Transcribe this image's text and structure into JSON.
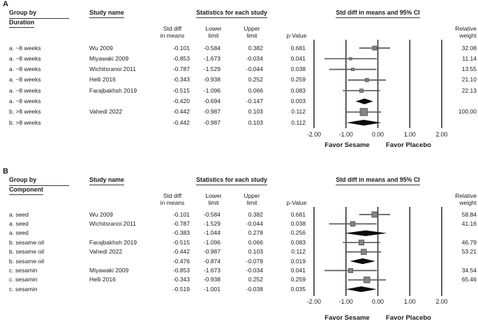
{
  "colors": {
    "text": "#1b1b1b",
    "grid": "#333333",
    "ci_line": "#5c5c5c",
    "marker_fill": "#848484",
    "marker_border": "#4f4f4f",
    "diamond": "#0a0a0a",
    "underline": "#3a3a3a"
  },
  "chart_data": {
    "type": "forest",
    "panels": [
      {
        "label": "A",
        "group_by_label": "Group by",
        "group_by_value": "Duration",
        "study_header": "Study name",
        "stats_header": "Statistics for each study",
        "plot_header": "Std diff in means and 95% CI",
        "columns": {
          "std_diff": {
            "l1": "Std diff",
            "l2": "in means"
          },
          "lower": {
            "l1": "Lower",
            "l2": "limit"
          },
          "upper": {
            "l1": "Upper",
            "l2": "limit"
          },
          "p": "p-Value",
          "weight": {
            "l1": "Relative",
            "l2": "weight"
          }
        },
        "axis": {
          "min": -2,
          "max": 2,
          "ticks": [
            -2,
            -1,
            0,
            1,
            2
          ],
          "tick_labels": [
            "-2.00",
            "-1.00",
            "0.00",
            "1.00",
            "2.00"
          ]
        },
        "favor_left": "Favor Sesame",
        "favor_right": "Favor Placebo",
        "rows": [
          {
            "group": "a. ~8 weeks",
            "study": "Wu 2009",
            "std_diff": -0.101,
            "lower": -0.584,
            "upper": 0.382,
            "p": 0.681,
            "weight": 32.08,
            "kind": "study"
          },
          {
            "group": "a. ~8 weeks",
            "study": "Miyawaki 2009",
            "std_diff": -0.853,
            "lower": -1.673,
            "upper": -0.034,
            "p": 0.041,
            "weight": 11.14,
            "kind": "study"
          },
          {
            "group": "a. ~8 weeks",
            "study": "Wichitsranoi 2011",
            "std_diff": -0.787,
            "lower": -1.529,
            "upper": -0.044,
            "p": 0.038,
            "weight": 13.55,
            "kind": "study"
          },
          {
            "group": "a. ~8 weeks",
            "study": "Helli 2016",
            "std_diff": -0.343,
            "lower": -0.938,
            "upper": 0.252,
            "p": 0.259,
            "weight": 21.1,
            "kind": "study"
          },
          {
            "group": "a. ~8 weeks",
            "study": "Farajbakhsh 2019",
            "std_diff": -0.515,
            "lower": -1.096,
            "upper": 0.066,
            "p": 0.083,
            "weight": 22.13,
            "kind": "study"
          },
          {
            "group": "a. ~8 weeks",
            "study": "",
            "std_diff": -0.42,
            "lower": -0.694,
            "upper": -0.147,
            "p": 0.003,
            "weight": null,
            "kind": "summary"
          },
          {
            "group": "b. >8 weeks",
            "study": "Vahedi 2022",
            "std_diff": -0.442,
            "lower": -0.987,
            "upper": 0.103,
            "p": 0.112,
            "weight": 100.0,
            "kind": "study"
          },
          {
            "group": "b. >8 weeks",
            "study": "",
            "std_diff": -0.442,
            "lower": -0.987,
            "upper": 0.103,
            "p": 0.112,
            "weight": null,
            "kind": "summary"
          }
        ]
      },
      {
        "label": "B",
        "group_by_label": "Group by",
        "group_by_value": "Component",
        "study_header": "Study name",
        "stats_header": "Statistics for each study",
        "plot_header": "Std diff in means and 95% CI",
        "columns": {
          "std_diff": {
            "l1": "Std diff",
            "l2": "in means"
          },
          "lower": {
            "l1": "Lower",
            "l2": "limit"
          },
          "upper": {
            "l1": "Upper",
            "l2": "limit"
          },
          "p": "p-Value",
          "weight": {
            "l1": "Relative",
            "l2": "weight"
          }
        },
        "axis": {
          "min": -2,
          "max": 2,
          "ticks": [
            -2,
            -1,
            0,
            1,
            2
          ],
          "tick_labels": [
            "-2.00",
            "-1.00",
            "0.00",
            "1.00",
            "2.00"
          ]
        },
        "favor_left": "Favor Sesame",
        "favor_right": "Favor Placebo",
        "rows": [
          {
            "group": "a. seed",
            "study": "Wu 2009",
            "std_diff": -0.101,
            "lower": -0.584,
            "upper": 0.382,
            "p": 0.681,
            "weight": 58.84,
            "kind": "study"
          },
          {
            "group": "a. seed",
            "study": "Wichitsranoi 2011",
            "std_diff": -0.787,
            "lower": -1.529,
            "upper": -0.044,
            "p": 0.038,
            "weight": 41.16,
            "kind": "study"
          },
          {
            "group": "a. seed",
            "study": "",
            "std_diff": -0.383,
            "lower": -1.044,
            "upper": 0.278,
            "p": 0.256,
            "weight": null,
            "kind": "summary"
          },
          {
            "group": "b. sesame oil",
            "study": "Farajbakhsh 2019",
            "std_diff": -0.515,
            "lower": -1.096,
            "upper": 0.066,
            "p": 0.083,
            "weight": 46.79,
            "kind": "study"
          },
          {
            "group": "b. sesame oil",
            "study": "Vahedi 2022",
            "std_diff": -0.442,
            "lower": -0.987,
            "upper": 0.103,
            "p": 0.112,
            "weight": 53.21,
            "kind": "study"
          },
          {
            "group": "b. sesame oil",
            "study": "",
            "std_diff": -0.476,
            "lower": -0.874,
            "upper": -0.078,
            "p": 0.019,
            "weight": null,
            "kind": "summary"
          },
          {
            "group": "c. sesamin",
            "study": "Miyawaki 2009",
            "std_diff": -0.853,
            "lower": -1.673,
            "upper": -0.034,
            "p": 0.041,
            "weight": 34.54,
            "kind": "study"
          },
          {
            "group": "c. sesamin",
            "study": "Helli 2016",
            "std_diff": -0.343,
            "lower": -0.938,
            "upper": 0.252,
            "p": 0.259,
            "weight": 65.46,
            "kind": "study"
          },
          {
            "group": "c. sesamin",
            "study": "",
            "std_diff": -0.519,
            "lower": -1.001,
            "upper": -0.038,
            "p": 0.035,
            "weight": null,
            "kind": "summary"
          }
        ]
      }
    ]
  }
}
